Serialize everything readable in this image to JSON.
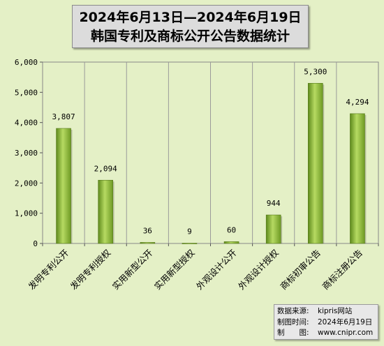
{
  "chart_data": {
    "type": "bar",
    "title": "2024年6月13日—2024年6月19日",
    "subtitle": "韩国专利及商标公开公告数据统计",
    "categories": [
      "发明专利公开",
      "发明专利授权",
      "实用新型公开",
      "实用新型授权",
      "外观设计公开",
      "外观设计授权",
      "商标初审公告",
      "商标注册公告"
    ],
    "values": [
      3807,
      2094,
      36,
      9,
      60,
      944,
      5300,
      4294
    ],
    "value_labels": [
      "3,807",
      "2,094",
      "36",
      "9",
      "60",
      "944",
      "5,300",
      "4,294"
    ],
    "ylim": [
      0,
      6000
    ],
    "yticks": [
      0,
      1000,
      2000,
      3000,
      4000,
      5000,
      6000
    ],
    "ytick_labels": [
      "0",
      "1,000",
      "2,000",
      "3,000",
      "4,000",
      "5,000",
      "6,000"
    ],
    "xlabel": "",
    "ylabel": "",
    "grid": "vertical",
    "bar_color": "#8cb83c"
  },
  "source": {
    "data_label": "数据来源:",
    "data_value": "kipris网站",
    "time_label": "制图时间:",
    "time_value": "2024年6月19日",
    "map_label": "制　　图:",
    "map_value": "www.cnipr.com"
  }
}
